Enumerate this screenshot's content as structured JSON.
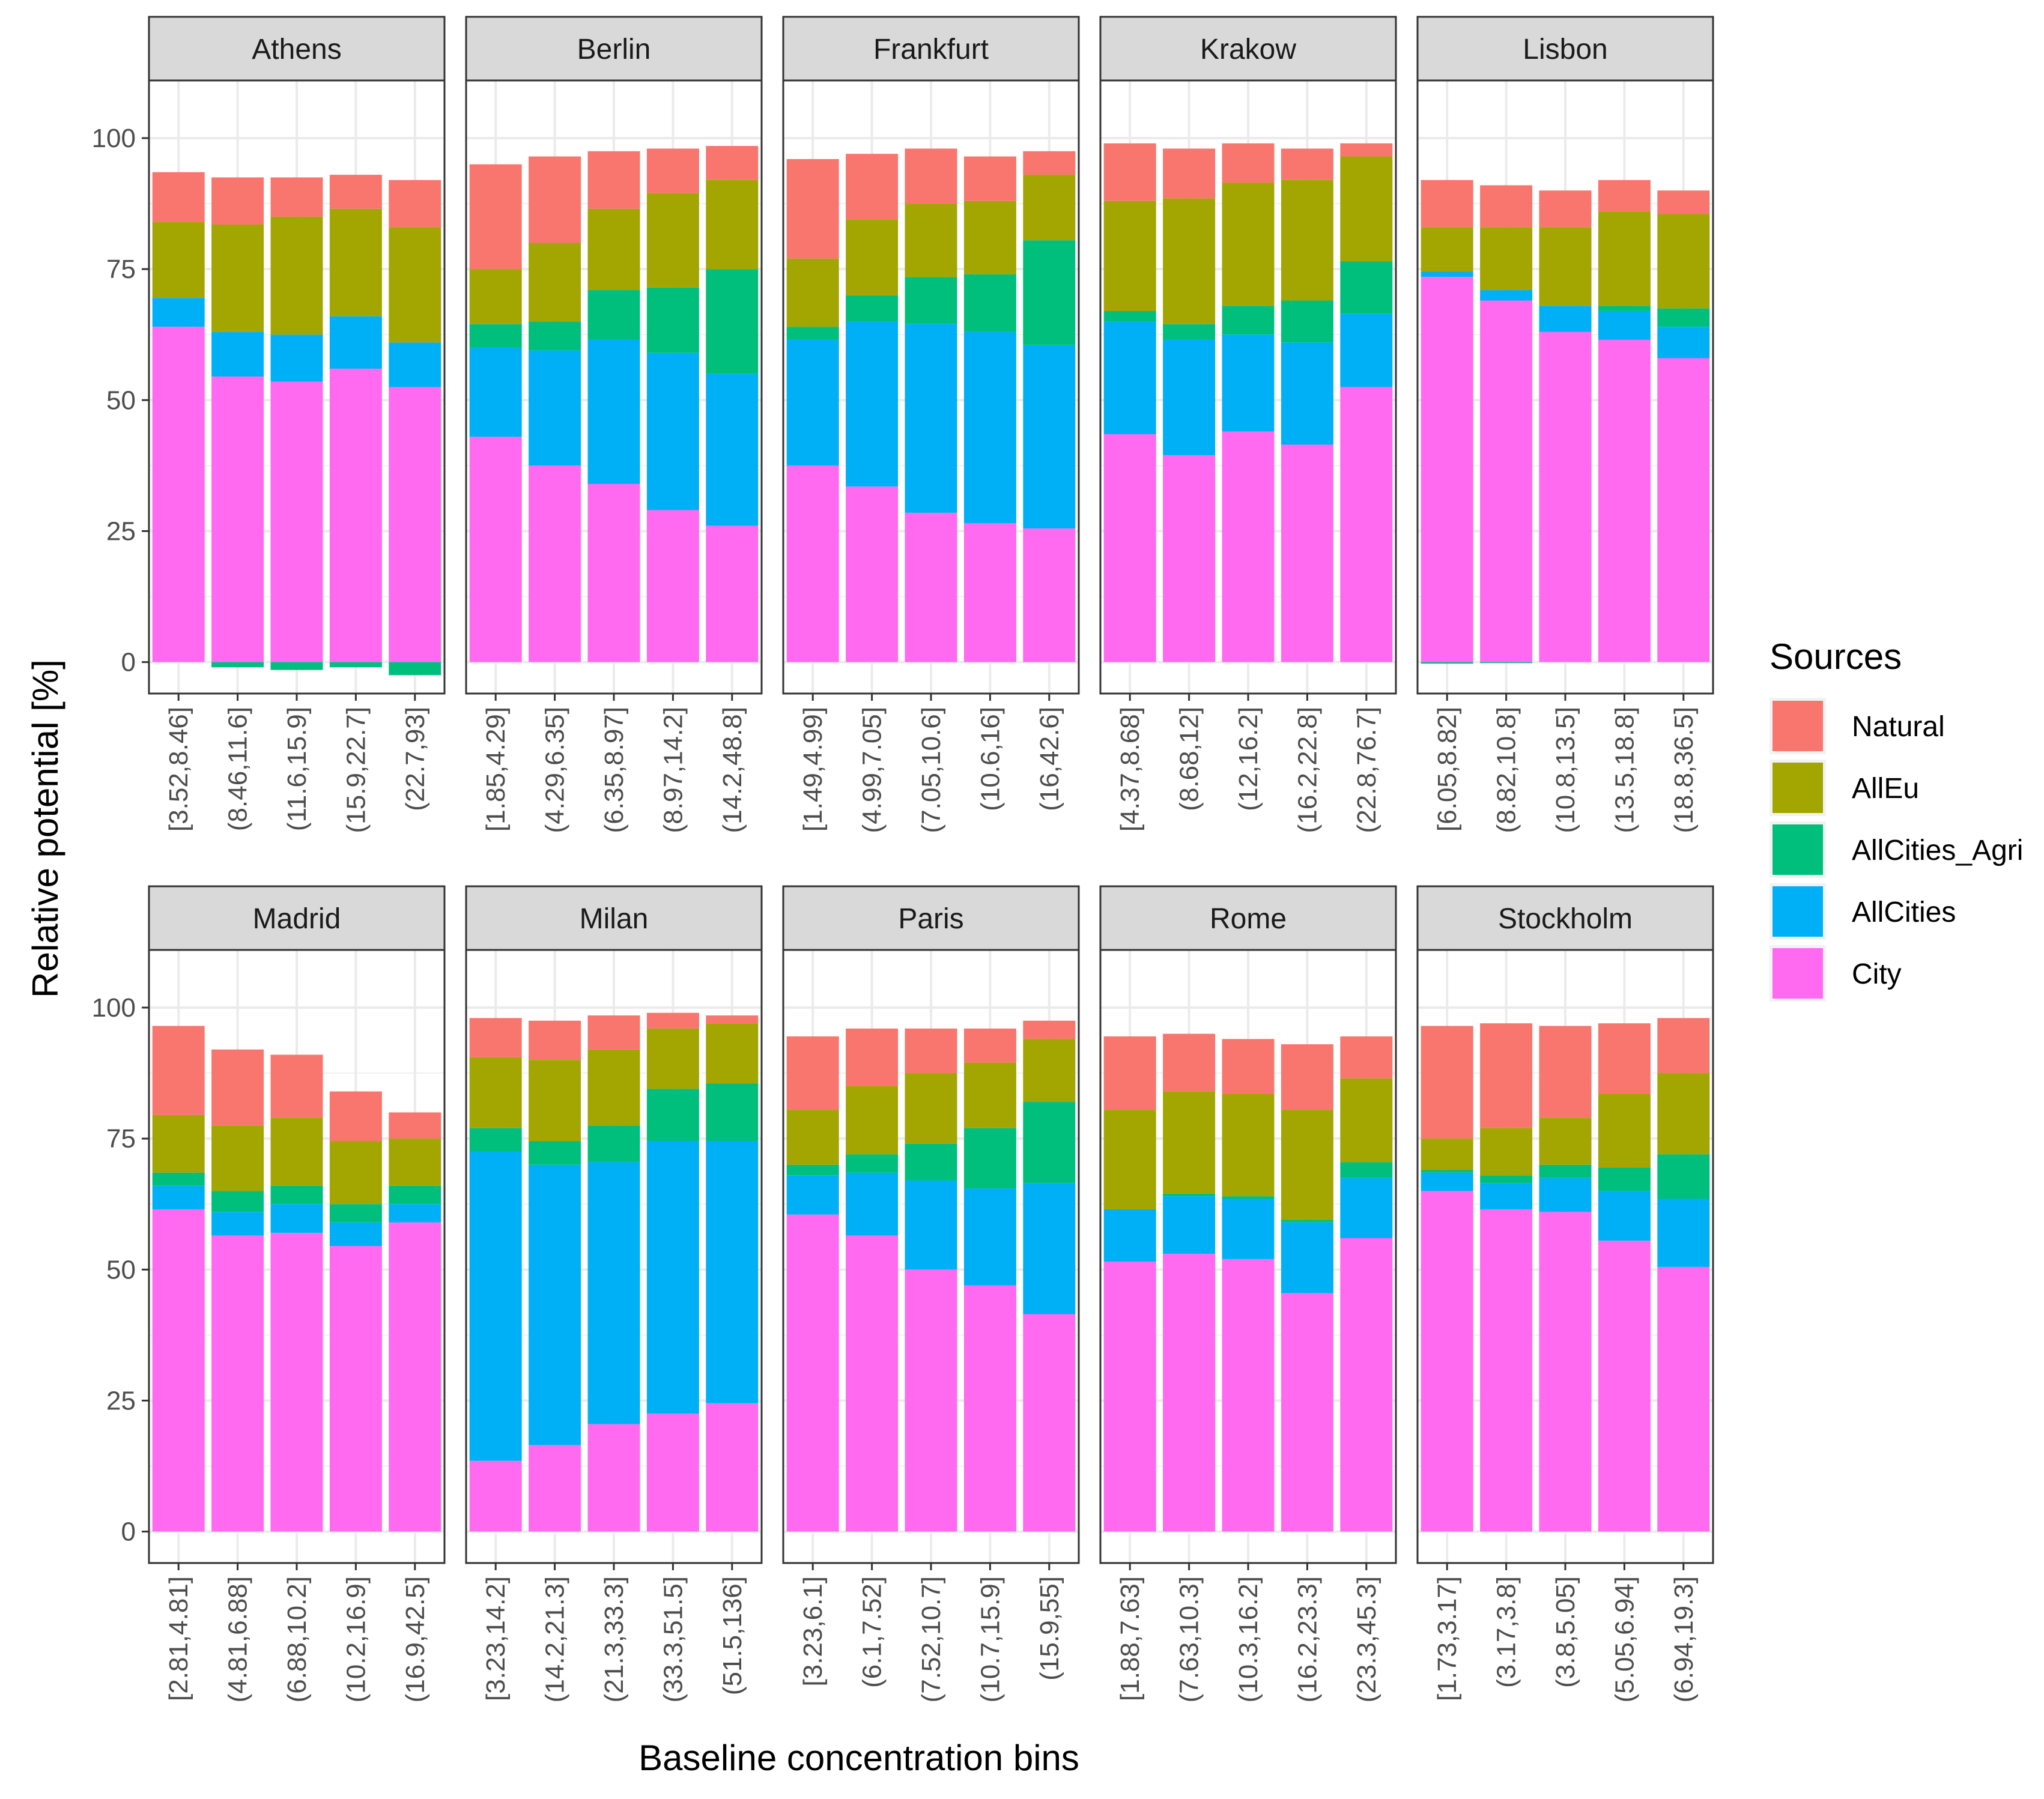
{
  "chart_data": {
    "type": "bar",
    "stacked": true,
    "facet_layout": "2 rows x 5 columns",
    "xlabel": "Baseline concentration bins",
    "ylabel": "Relative potential [%]",
    "yticks": [
      0,
      25,
      50,
      75,
      100
    ],
    "ylim": [
      -6,
      111
    ],
    "grid": true,
    "legend": {
      "title": "Sources",
      "position": "right",
      "items": [
        {
          "key": "Natural",
          "label": "Natural",
          "color": "#F8766D"
        },
        {
          "key": "AllEu",
          "label": "AllEu",
          "color": "#A3A500"
        },
        {
          "key": "AllCities_Agri",
          "label": "AllCities_Agri",
          "color": "#00BF7D"
        },
        {
          "key": "AllCities",
          "label": "AllCities",
          "color": "#00B0F6"
        },
        {
          "key": "City",
          "label": "City",
          "color": "#FF6AF0"
        }
      ]
    },
    "stack_order": [
      "City",
      "AllCities",
      "AllCities_Agri",
      "AllEu",
      "Natural"
    ],
    "panels": [
      {
        "city": "Athens",
        "bins": [
          "[3.52,8.46]",
          "(8.46,11.6]",
          "(11.6,15.9]",
          "(15.9,22.7]",
          "(22.7,93]"
        ],
        "City": [
          64,
          54.5,
          53.5,
          56,
          52.5
        ],
        "AllCities": [
          5.5,
          8.5,
          9,
          10,
          8.5
        ],
        "AllCities_Agri": [
          0,
          -1,
          -1.5,
          -1,
          -2.5
        ],
        "AllEu": [
          14.5,
          20.5,
          22.5,
          20.5,
          22
        ],
        "Natural": [
          9.5,
          9,
          7.5,
          6.5,
          9
        ]
      },
      {
        "city": "Berlin",
        "bins": [
          "[1.85,4.29]",
          "(4.29,6.35]",
          "(6.35,8.97]",
          "(8.97,14.2]",
          "(14.2,48.8]"
        ],
        "City": [
          43,
          37.5,
          34,
          29,
          26
        ],
        "AllCities": [
          17,
          22,
          27.5,
          30,
          29
        ],
        "AllCities_Agri": [
          4.5,
          5.5,
          9.5,
          12.5,
          20
        ],
        "AllEu": [
          10.5,
          15,
          15.5,
          18,
          17
        ],
        "Natural": [
          20,
          16.5,
          11,
          8.5,
          6.5
        ]
      },
      {
        "city": "Frankfurt",
        "bins": [
          "[1.49,4.99]",
          "(4.99,7.05]",
          "(7.05,10.6]",
          "(10.6,16]",
          "(16,42.6]"
        ],
        "City": [
          37.5,
          33.5,
          28.5,
          26.5,
          25.5
        ],
        "AllCities": [
          24,
          31.5,
          36,
          36.5,
          35
        ],
        "AllCities_Agri": [
          2.5,
          5,
          9,
          11,
          20
        ],
        "AllEu": [
          13,
          14.5,
          14,
          14,
          12.5
        ],
        "Natural": [
          19,
          12.5,
          10.5,
          8.5,
          4.5
        ]
      },
      {
        "city": "Krakow",
        "bins": [
          "[4.37,8.68]",
          "(8.68,12]",
          "(12,16.2]",
          "(16.2,22.8]",
          "(22.8,76.7]"
        ],
        "City": [
          43.5,
          39.5,
          44,
          41.5,
          52.5
        ],
        "AllCities": [
          21.5,
          22,
          18.5,
          19.5,
          14
        ],
        "AllCities_Agri": [
          2,
          3,
          5.5,
          8,
          10
        ],
        "AllEu": [
          21,
          24,
          23.5,
          23,
          20
        ],
        "Natural": [
          11,
          9.5,
          7.5,
          6,
          2.5
        ]
      },
      {
        "city": "Lisbon",
        "bins": [
          "[6.05,8.82]",
          "(8.82,10.8]",
          "(10.8,13.5]",
          "(13.5,18.8]",
          "(18.8,36.5]"
        ],
        "City": [
          73.5,
          69,
          63,
          61.5,
          58
        ],
        "AllCities": [
          1,
          2,
          5,
          5.5,
          6
        ],
        "AllCities_Agri": [
          -0.3,
          -0.2,
          0,
          1,
          3.5
        ],
        "AllEu": [
          8.5,
          12,
          15,
          18,
          18
        ],
        "Natural": [
          9,
          8,
          7,
          6,
          4.5
        ]
      },
      {
        "city": "Madrid",
        "bins": [
          "[2.81,4.81]",
          "(4.81,6.88]",
          "(6.88,10.2]",
          "(10.2,16.9]",
          "(16.9,42.5]"
        ],
        "City": [
          61.5,
          56.5,
          57,
          54.5,
          59
        ],
        "AllCities": [
          4.5,
          4.5,
          5.5,
          4.5,
          3.5
        ],
        "AllCities_Agri": [
          2.5,
          4,
          3.5,
          3.5,
          3.5
        ],
        "AllEu": [
          11,
          12.5,
          13,
          12,
          9
        ],
        "Natural": [
          17,
          14.5,
          12,
          9.5,
          5
        ]
      },
      {
        "city": "Milan",
        "bins": [
          "[3.23,14.2]",
          "(14.2,21.3]",
          "(21.3,33.3]",
          "(33.3,51.5]",
          "(51.5,136]"
        ],
        "City": [
          13.5,
          16.5,
          20.5,
          22.5,
          24.5
        ],
        "AllCities": [
          59,
          53.5,
          50,
          52,
          50
        ],
        "AllCities_Agri": [
          4.5,
          4.5,
          7,
          10,
          11
        ],
        "AllEu": [
          13.5,
          15.5,
          14.5,
          11.5,
          11.5
        ],
        "Natural": [
          7.5,
          7.5,
          6.5,
          3,
          1.5
        ]
      },
      {
        "city": "Paris",
        "bins": [
          "[3.23,6.1]",
          "(6.1,7.52]",
          "(7.52,10.7]",
          "(10.7,15.9]",
          "(15.9,55]"
        ],
        "City": [
          60.5,
          56.5,
          50,
          47,
          41.5
        ],
        "AllCities": [
          7.5,
          12,
          17,
          18.5,
          25
        ],
        "AllCities_Agri": [
          2,
          3.5,
          7,
          11.5,
          15.5
        ],
        "AllEu": [
          10.5,
          13,
          13.5,
          12.5,
          12
        ],
        "Natural": [
          14,
          11,
          8.5,
          6.5,
          3.5
        ]
      },
      {
        "city": "Rome",
        "bins": [
          "[1.88,7.63]",
          "(7.63,10.3]",
          "(10.3,16.2]",
          "(16.2,23.3]",
          "(23.3,45.3]"
        ],
        "City": [
          51.5,
          53,
          52,
          45.5,
          56
        ],
        "AllCities": [
          10,
          11,
          11.5,
          13.5,
          11.5
        ],
        "AllCities_Agri": [
          0,
          0.5,
          0.5,
          0.5,
          3
        ],
        "AllEu": [
          19,
          19.5,
          19.5,
          21,
          16
        ],
        "Natural": [
          14,
          11,
          10.5,
          12.5,
          8
        ]
      },
      {
        "city": "Stockholm",
        "bins": [
          "[1.73,3.17]",
          "(3.17,3.8]",
          "(3.8,5.05]",
          "(5.05,6.94]",
          "(6.94,19.3]"
        ],
        "City": [
          65,
          61.5,
          61,
          55.5,
          50.5
        ],
        "AllCities": [
          3.5,
          5,
          6.5,
          9.5,
          13
        ],
        "AllCities_Agri": [
          0.5,
          1.5,
          2.5,
          4.5,
          8.5
        ],
        "AllEu": [
          6,
          9,
          9,
          14,
          15.5
        ],
        "Natural": [
          21.5,
          20,
          17.5,
          13.5,
          10.5
        ]
      }
    ]
  }
}
